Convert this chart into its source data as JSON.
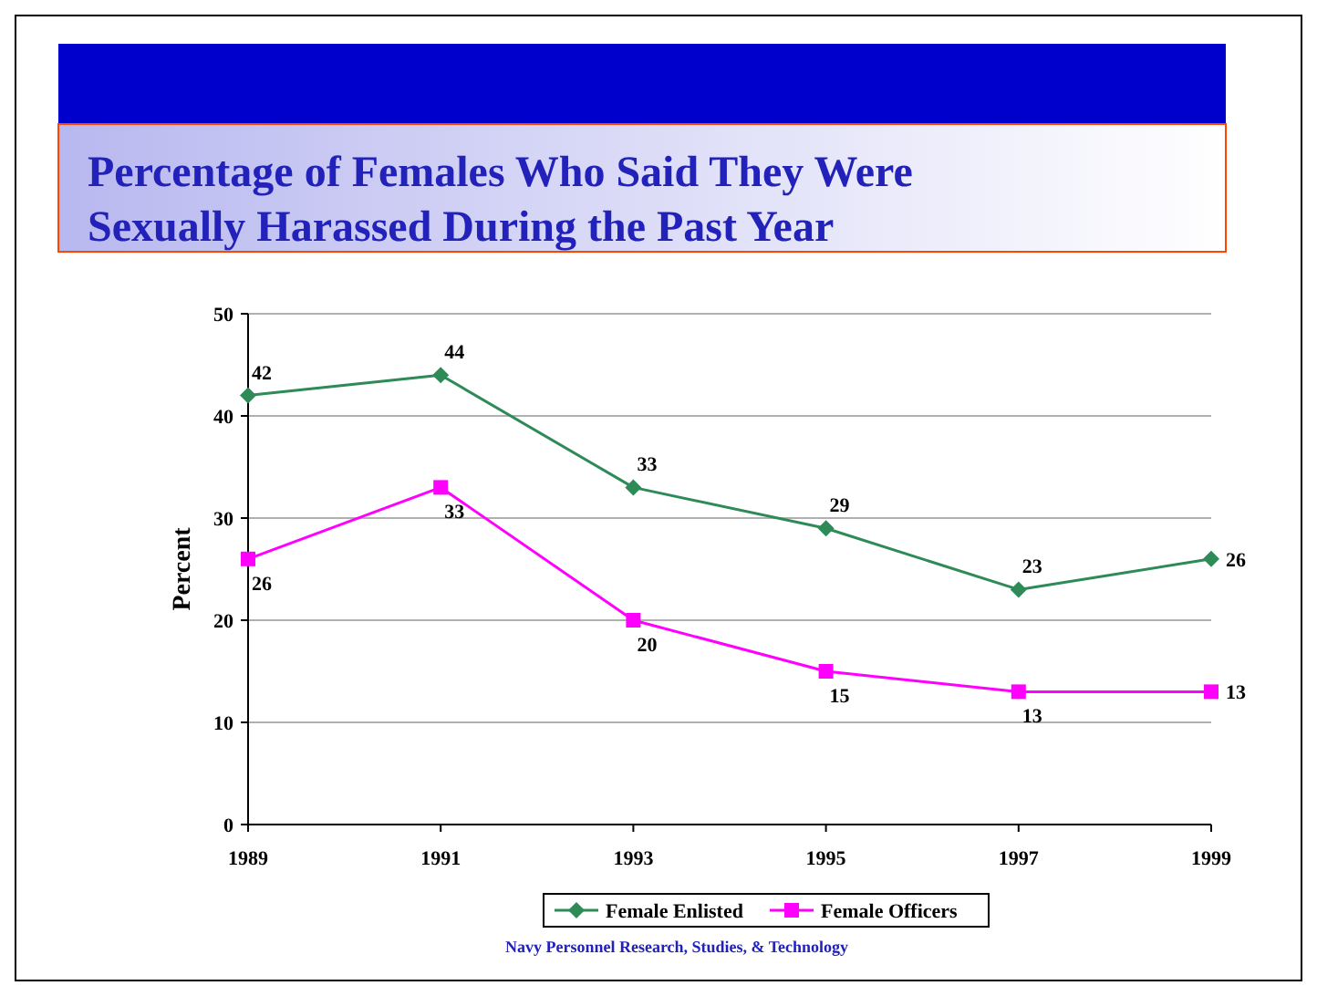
{
  "chart_data": {
    "type": "line",
    "title": "Percentage of Females Who Said They Were Sexually Harassed During the Past Year",
    "ylabel": "Percent",
    "x": [
      1989,
      1991,
      1993,
      1995,
      1997,
      1999
    ],
    "xlim": [
      1989,
      1999
    ],
    "xticks": [
      1989,
      1991,
      1993,
      1995,
      1997,
      1999
    ],
    "ylim": [
      0,
      50
    ],
    "yticks": [
      0,
      10,
      20,
      30,
      40,
      50
    ],
    "grid": "y",
    "legend": "bottom",
    "data_labels": true,
    "series": [
      {
        "name": "Female Enlisted",
        "color": "#2e8b57",
        "marker": "diamond",
        "values": [
          42,
          44,
          33,
          29,
          23,
          26
        ]
      },
      {
        "name": "Female Officers",
        "color": "#ff00ff",
        "marker": "square",
        "values": [
          26,
          33,
          20,
          15,
          13,
          13
        ]
      }
    ],
    "annotations": [
      "Navy Personnel Research, Studies, & Technology"
    ]
  }
}
